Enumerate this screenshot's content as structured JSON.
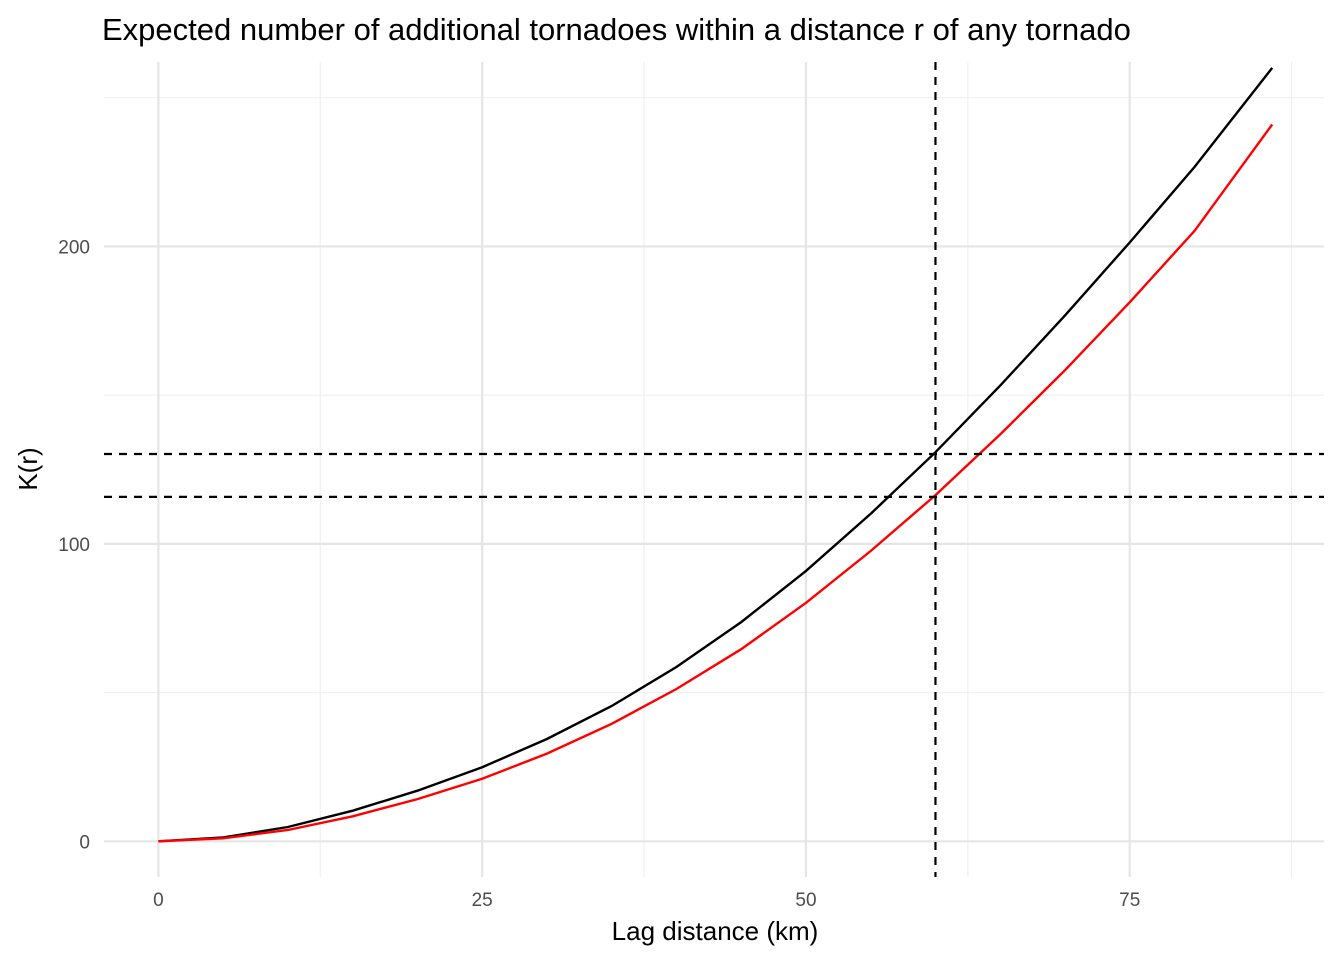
{
  "chart_data": {
    "type": "line",
    "title": "Expected number of additional tornadoes within a distance r of any tornado",
    "xlabel": "Lag distance (km)",
    "ylabel": "K(r)",
    "xlim": [
      -4.2,
      90
    ],
    "ylim": [
      -12,
      262
    ],
    "x_ticks": [
      0,
      25,
      50,
      75
    ],
    "x_minor_ticks": [
      12.5,
      37.5,
      62.5,
      87.5
    ],
    "y_ticks": [
      0,
      100,
      200
    ],
    "y_minor_ticks": [
      50,
      150,
      250
    ],
    "grid": true,
    "legend": "none",
    "series": [
      {
        "color": "#000000",
        "x": [
          0,
          5,
          10,
          15,
          20,
          25,
          30,
          35,
          40,
          45,
          50,
          55,
          60,
          65,
          70,
          75,
          80,
          86
        ],
        "y": [
          0,
          1.3,
          4.8,
          10.3,
          17.0,
          24.9,
          34.4,
          45.5,
          58.6,
          73.7,
          90.9,
          110.1,
          130.8,
          153.2,
          176.8,
          201.3,
          226.7,
          260
        ]
      },
      {
        "color": "#ff0000",
        "x": [
          0,
          5,
          10,
          15,
          20,
          25,
          30,
          35,
          40,
          45,
          50,
          55,
          60,
          65,
          70,
          75,
          80,
          86
        ],
        "y": [
          0,
          1.0,
          3.8,
          8.4,
          14.2,
          21.0,
          29.5,
          39.5,
          51.2,
          64.6,
          80.2,
          97.6,
          116.4,
          136.8,
          158.4,
          181.2,
          205.2,
          241
        ]
      }
    ],
    "reference_lines": [
      {
        "orientation": "vertical",
        "value": 60,
        "style": "dashed",
        "color": "#000000"
      },
      {
        "orientation": "horizontal",
        "value": 130.2,
        "style": "dashed",
        "color": "#000000"
      },
      {
        "orientation": "horizontal",
        "value": 115.8,
        "style": "dashed",
        "color": "#000000"
      }
    ]
  }
}
